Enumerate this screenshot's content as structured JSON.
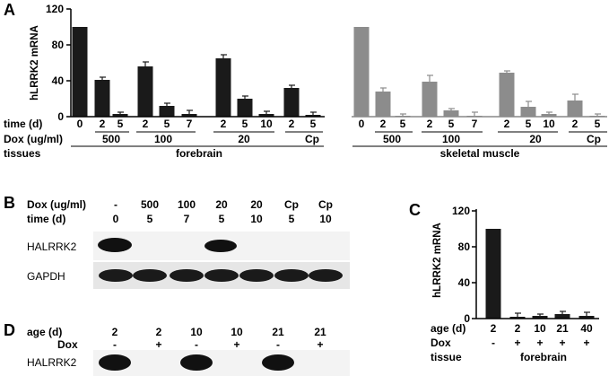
{
  "panels": {
    "A": {
      "letter": "A",
      "row_labels": {
        "time": "time (d)",
        "dox": "Dox (ug/ml)",
        "tissues": "tissues"
      },
      "forebrain": {
        "times": [
          "0",
          "2",
          "5",
          "2",
          "5",
          "7",
          "2",
          "5",
          "10",
          "2",
          "5"
        ],
        "dox_groups": [
          "500",
          "100",
          "20",
          "Cp"
        ],
        "tissue": "forebrain"
      },
      "muscle": {
        "times": [
          "0",
          "2",
          "5",
          "2",
          "5",
          "7",
          "2",
          "5",
          "10",
          "2",
          "5"
        ],
        "dox_groups": [
          "500",
          "100",
          "20",
          "Cp"
        ],
        "tissue": "skeletal muscle"
      }
    },
    "B": {
      "letter": "B",
      "dox_label": "Dox (ug/ml)",
      "time_label": "time (d)",
      "dox": [
        "-",
        "500",
        "100",
        "20",
        "20",
        "Cp",
        "Cp"
      ],
      "time": [
        "0",
        "5",
        "7",
        "5",
        "10",
        "5",
        "10"
      ],
      "bands": [
        "HALRRK2",
        "GAPDH"
      ]
    },
    "C": {
      "letter": "C",
      "row_labels": {
        "age": "age (d)",
        "dox": "Dox",
        "tissue": "tissue"
      },
      "age": [
        "2",
        "2",
        "10",
        "21",
        "40"
      ],
      "dox": [
        "-",
        "+",
        "+",
        "+",
        "+"
      ],
      "tissue": "forebrain"
    },
    "D": {
      "letter": "D",
      "age_label": "age (d)",
      "dox_label": "Dox",
      "age": [
        "2",
        "2",
        "10",
        "10",
        "21",
        "21"
      ],
      "dox": [
        "-",
        "+",
        "-",
        "+",
        "-",
        "+"
      ],
      "band": "HALRRK2"
    }
  },
  "chart_data": [
    {
      "type": "bar",
      "panel": "A",
      "ylabel": "hLRRK2 mRNA",
      "yticks": [
        "0",
        "40",
        "80",
        "120"
      ],
      "ylim": [
        0,
        120
      ],
      "colors": {
        "forebrain": "#1a1a1a",
        "muscle": "#8c8c8c"
      },
      "series": [
        {
          "name": "forebrain",
          "x": [
            "0",
            "2",
            "5",
            "2",
            "5",
            "7",
            "2",
            "5",
            "10",
            "2",
            "5"
          ],
          "values": [
            100,
            41,
            3,
            56,
            12,
            3,
            65,
            20,
            3,
            32,
            2
          ],
          "errors": [
            0,
            3,
            2,
            5,
            3,
            4,
            4,
            3,
            3,
            3,
            3
          ]
        },
        {
          "name": "skeletal muscle",
          "x": [
            "0",
            "2",
            "5",
            "2",
            "5",
            "7",
            "2",
            "5",
            "10",
            "2",
            "5"
          ],
          "values": [
            100,
            28,
            1,
            39,
            7,
            1,
            49,
            11,
            3,
            18,
            1
          ],
          "errors": [
            0,
            4,
            2,
            7,
            2,
            4,
            2,
            6,
            2,
            7,
            2
          ]
        }
      ]
    },
    {
      "type": "bar",
      "panel": "C",
      "ylabel": "hLRRK2 mRNA",
      "yticks": [
        "0",
        "40",
        "80",
        "120"
      ],
      "ylim": [
        0,
        120
      ],
      "categories": [
        "2",
        "2",
        "10",
        "21",
        "40"
      ],
      "values": [
        100,
        2,
        3,
        5,
        3
      ],
      "errors": [
        0,
        4,
        2,
        3,
        4
      ]
    }
  ]
}
